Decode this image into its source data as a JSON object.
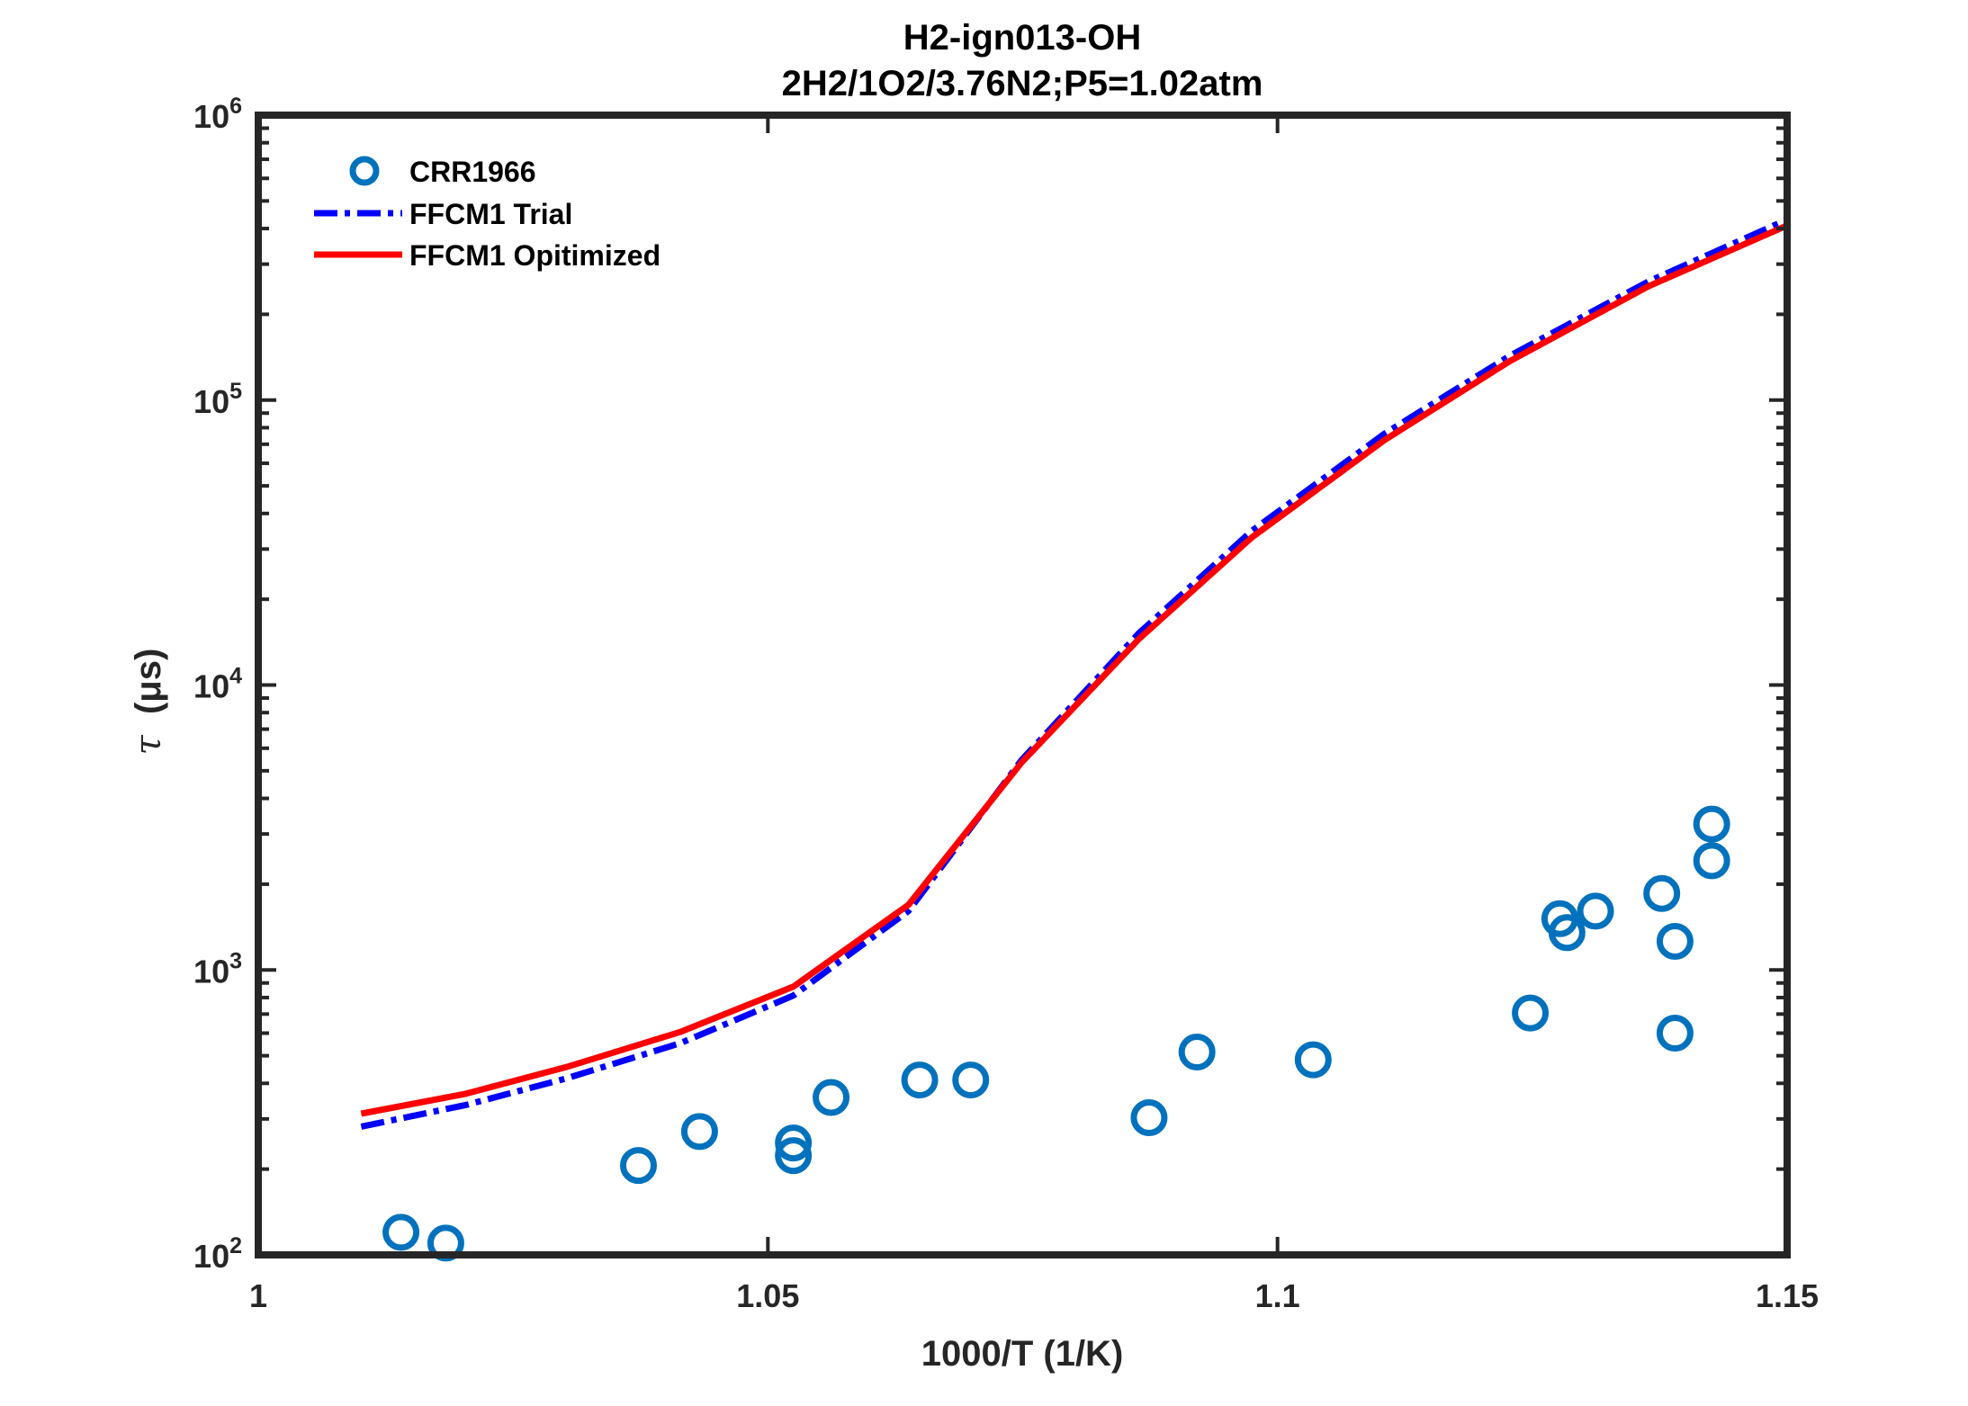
{
  "chart_data": {
    "type": "scatter",
    "title": "H2-ign013-OH",
    "subtitle": "2H2/1O2/3.76N2;P5=1.02atm",
    "xlabel": "1000/T (1/K)",
    "ylabel_symbol": "τ",
    "ylabel_unit": "(μs)",
    "xlim": [
      1.0,
      1.15
    ],
    "ylim": [
      100,
      1000000
    ],
    "yscale": "log",
    "xticks": [
      1.0,
      1.05,
      1.1,
      1.15
    ],
    "xtick_labels": [
      "1",
      "1.05",
      "1.1",
      "1.15"
    ],
    "yticks": [
      100,
      1000,
      10000,
      100000,
      1000000
    ],
    "ytick_labels": [
      {
        "base": "10",
        "exp": "2"
      },
      {
        "base": "10",
        "exp": "3"
      },
      {
        "base": "10",
        "exp": "4"
      },
      {
        "base": "10",
        "exp": "5"
      },
      {
        "base": "10",
        "exp": "6"
      }
    ],
    "grid": false,
    "legend_position": "top-left",
    "series": [
      {
        "name": "CRR1966",
        "kind": "markers",
        "marker": "circle",
        "color": "#0072BD",
        "x": [
          1.014,
          1.0184,
          1.0373,
          1.0433,
          1.0525,
          1.0525,
          1.0562,
          1.0649,
          1.0699,
          1.0874,
          1.0921,
          1.1035,
          1.1248,
          1.1277,
          1.1284,
          1.1312,
          1.1377,
          1.139,
          1.139,
          1.1426,
          1.1426
        ],
        "y": [
          120,
          110,
          206,
          271,
          247,
          223,
          357,
          411,
          411,
          303,
          515,
          484,
          706,
          1514,
          1352,
          1609,
          1855,
          1260,
          600,
          3250,
          2417
        ]
      },
      {
        "name": "FFCM1 Trial",
        "kind": "line",
        "style": "dash-dot",
        "color": "#0000FF",
        "x": [
          1.0101,
          1.0204,
          1.0302,
          1.0414,
          1.0525,
          1.0638,
          1.0749,
          1.0864,
          1.0975,
          1.1105,
          1.1228,
          1.1364,
          1.15
        ],
        "y": [
          282,
          336,
          416,
          553,
          813,
          1610,
          5460,
          15200,
          34800,
          76200,
          143000,
          261000,
          430000
        ]
      },
      {
        "name": "FFCM1 Opitimized",
        "kind": "line",
        "style": "solid",
        "color": "#FF0000",
        "x": [
          1.0101,
          1.0204,
          1.0302,
          1.0414,
          1.0525,
          1.0638,
          1.0749,
          1.0864,
          1.0975,
          1.1105,
          1.1228,
          1.1364,
          1.15
        ],
        "y": [
          313,
          368,
          456,
          606,
          874,
          1693,
          5350,
          14500,
          33000,
          72400,
          137000,
          251000,
          410000
        ]
      }
    ]
  }
}
